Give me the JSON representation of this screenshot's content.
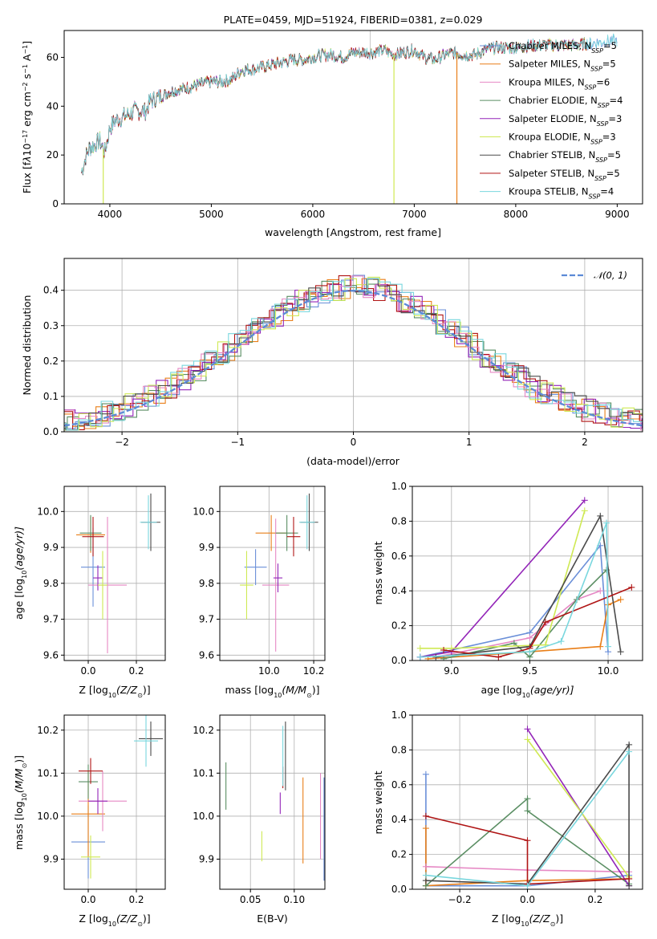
{
  "colors": [
    "#6a8fd8",
    "#e97f19",
    "#e688c4",
    "#5a8e63",
    "#9325b8",
    "#cfe954",
    "#4a4a4a",
    "#b01515",
    "#79d7de"
  ],
  "chart_data": [
    {
      "id": "spectrum",
      "type": "line",
      "title": "PLATE=0459, MJD=51924, FIBERID=0381, z=0.029",
      "xlabel": "wavelength [Angstrom, rest frame]",
      "ylabel_base": "Flux [f",
      "ylabel_lambda": "λ",
      "ylabel_pow": "10",
      "ylabel_exp": "−17",
      "ylabel_unit": " erg cm",
      "ylabel_e2": "−2",
      "ylabel_s": " s",
      "ylabel_e1": "−1",
      "ylabel_A": " A",
      "ylabel_e3": "−1",
      "ylabel_end": "]",
      "xlim": [
        3550,
        9250
      ],
      "ylim": [
        0,
        71
      ],
      "xticks": [
        4000,
        5000,
        6000,
        7000,
        8000,
        9000
      ],
      "yticks": [
        0,
        20,
        40,
        60
      ],
      "x": [
        3720,
        3760,
        3800,
        3850,
        3900,
        3950,
        4000,
        4050,
        4100,
        4150,
        4200,
        4250,
        4300,
        4350,
        4400,
        4500,
        4600,
        4700,
        4800,
        4900,
        5000,
        5100,
        5200,
        5300,
        5400,
        5500,
        5600,
        5700,
        5800,
        5900,
        6000,
        6100,
        6200,
        6300,
        6400,
        6500,
        6600,
        6700,
        6800,
        6900,
        7000,
        7100,
        7200,
        7300,
        7400,
        7500,
        7600,
        7700,
        7800,
        7900,
        8000,
        8200,
        8400,
        8600,
        8800,
        9000
      ],
      "y": [
        13,
        19,
        23,
        24,
        26,
        21,
        31,
        34,
        35,
        36,
        37,
        38,
        38,
        38,
        42,
        44,
        46,
        47,
        48,
        49,
        50,
        50,
        51,
        55,
        55,
        56,
        57,
        58,
        59,
        59,
        60,
        61,
        61,
        60,
        62,
        62,
        62,
        63,
        61,
        62,
        63,
        60,
        59,
        61,
        62,
        61,
        61,
        63,
        64,
        64,
        64,
        65,
        65,
        65,
        66,
        67
      ],
      "dips": [
        {
          "x": 3935,
          "to": 0,
          "series": 5
        },
        {
          "x": 6800,
          "to": 0,
          "series": 5
        },
        {
          "x": 7420,
          "to": 0,
          "series": 1
        }
      ],
      "series": [
        {
          "label": "Chabrier MILES, N",
          "sub": "SSP",
          "tail": "=5"
        },
        {
          "label": "Salpeter MILES, N",
          "sub": "SSP",
          "tail": "=5"
        },
        {
          "label": "Kroupa MILES, N",
          "sub": "SSP",
          "tail": "=6"
        },
        {
          "label": "Chabrier ELODIE, N",
          "sub": "SSP",
          "tail": "=4"
        },
        {
          "label": "Salpeter ELODIE, N",
          "sub": "SSP",
          "tail": "=3"
        },
        {
          "label": "Kroupa ELODIE, N",
          "sub": "SSP",
          "tail": "=3"
        },
        {
          "label": "Chabrier STELIB, N",
          "sub": "SSP",
          "tail": "=5"
        },
        {
          "label": "Salpeter STELIB, N",
          "sub": "SSP",
          "tail": "=5"
        },
        {
          "label": "Kroupa STELIB, N",
          "sub": "SSP",
          "tail": "=4"
        }
      ]
    },
    {
      "id": "residuals",
      "type": "step",
      "xlabel": "(data-model)/error",
      "ylabel": "Normed distribution",
      "xlim": [
        -2.5,
        2.5
      ],
      "ylim": [
        0,
        0.49
      ],
      "xticks": [
        -2,
        -1,
        0,
        1,
        2
      ],
      "xticklabels": [
        "−2",
        "−1",
        "0",
        "1",
        "2"
      ],
      "yticks": [
        0,
        0.1,
        0.2,
        0.3,
        0.4
      ],
      "gauss_label": "𝒩(0, 1)"
    },
    {
      "id": "age_Z",
      "type": "errorbar",
      "xlabel_pre": "Z [log",
      "xlabel_sub": "10",
      "xlabel_post": "(Z/Z",
      "xlabel_odot": "⊙",
      "xlabel_end": ")]",
      "ylabel_pre": "age  [log",
      "ylabel_sub": "10",
      "ylabel_post": "(age/yr)]",
      "xlim": [
        -0.1,
        0.32
      ],
      "ylim": [
        9.585,
        10.07
      ],
      "xticks": [
        0,
        0.2
      ],
      "yticks": [
        9.6,
        9.7,
        9.8,
        9.9,
        10.0
      ],
      "points": [
        {
          "x": 0.02,
          "y": 9.845,
          "dx": 0.05,
          "dy": 0.11
        },
        {
          "x": 0.01,
          "y": 9.935,
          "dx": 0.06,
          "dy": 0.05
        },
        {
          "x": 0.08,
          "y": 9.795,
          "dx": 0.08,
          "dy": 0.19
        },
        {
          "x": 0.01,
          "y": 9.94,
          "dx": 0.045,
          "dy": 0.05
        },
        {
          "x": 0.04,
          "y": 9.815,
          "dx": 0.02,
          "dy": 0.035
        },
        {
          "x": 0.06,
          "y": 9.795,
          "dx": 0.02,
          "dy": 0.095
        },
        {
          "x": 0.26,
          "y": 9.97,
          "dx": 0.04,
          "dy": 0.08
        },
        {
          "x": 0.02,
          "y": 9.93,
          "dx": 0.045,
          "dy": 0.055
        },
        {
          "x": 0.25,
          "y": 9.97,
          "dx": 0.035,
          "dy": 0.075
        }
      ]
    },
    {
      "id": "age_mass",
      "type": "errorbar",
      "xlabel_pre": "mass [log",
      "xlabel_sub": "10",
      "xlabel_post": "(M/M",
      "xlabel_odot": "⊙",
      "xlabel_end": ")]",
      "xlim": [
        9.78,
        10.25
      ],
      "ylim": [
        9.585,
        10.07
      ],
      "xticks": [
        10.0,
        10.2
      ],
      "yticks": [
        9.6,
        9.7,
        9.8,
        9.9,
        10.0
      ],
      "points": [
        {
          "x": 9.94,
          "y": 9.845,
          "dx": 0.05,
          "dy": 0.05
        },
        {
          "x": 10.01,
          "y": 9.94,
          "dx": 0.07,
          "dy": 0.05
        },
        {
          "x": 10.03,
          "y": 9.795,
          "dx": 0.06,
          "dy": 0.185
        },
        {
          "x": 10.08,
          "y": 9.94,
          "dx": 0.05,
          "dy": 0.05
        },
        {
          "x": 10.04,
          "y": 9.815,
          "dx": 0.02,
          "dy": 0.04
        },
        {
          "x": 9.9,
          "y": 9.795,
          "dx": 0.03,
          "dy": 0.095
        },
        {
          "x": 10.18,
          "y": 9.97,
          "dx": 0.04,
          "dy": 0.08
        },
        {
          "x": 10.11,
          "y": 9.93,
          "dx": 0.03,
          "dy": 0.055
        },
        {
          "x": 10.17,
          "y": 9.97,
          "dx": 0.035,
          "dy": 0.075
        }
      ]
    },
    {
      "id": "weight_age",
      "type": "line",
      "xlabel_pre": "age  [log",
      "xlabel_sub": "10",
      "xlabel_post": "(age/yr)]",
      "ylabel": "mass weight",
      "xlim": [
        8.75,
        10.22
      ],
      "ylim": [
        0,
        1.0
      ],
      "xticks": [
        9.0,
        9.5,
        10.0
      ],
      "yticks": [
        0,
        0.2,
        0.4,
        0.6,
        0.8,
        1.0
      ],
      "lines": [
        [
          [
            8.8,
            0.02
          ],
          [
            9.5,
            0.16
          ],
          [
            9.95,
            0.66
          ],
          [
            10.0,
            0.05
          ]
        ],
        [
          [
            8.85,
            0.01
          ],
          [
            9.5,
            0.05
          ],
          [
            9.95,
            0.08
          ],
          [
            10.0,
            0.32
          ],
          [
            10.08,
            0.35
          ]
        ],
        [
          [
            8.9,
            0.02
          ],
          [
            9.5,
            0.13
          ],
          [
            9.8,
            0.35
          ],
          [
            9.95,
            0.4
          ]
        ],
        [
          [
            8.95,
            0.01
          ],
          [
            9.4,
            0.1
          ],
          [
            9.5,
            0.02
          ],
          [
            9.8,
            0.35
          ],
          [
            9.99,
            0.52
          ]
        ],
        [
          [
            8.8,
            0.02
          ],
          [
            9.0,
            0.05
          ],
          [
            9.85,
            0.92
          ]
        ],
        [
          [
            8.8,
            0.07
          ],
          [
            9.0,
            0.07
          ],
          [
            9.6,
            0.09
          ],
          [
            9.85,
            0.86
          ]
        ],
        [
          [
            8.9,
            0.02
          ],
          [
            9.5,
            0.08
          ],
          [
            9.95,
            0.83
          ],
          [
            10.08,
            0.05
          ]
        ],
        [
          [
            8.95,
            0.06
          ],
          [
            9.3,
            0.02
          ],
          [
            9.5,
            0.07
          ],
          [
            9.6,
            0.22
          ],
          [
            10.15,
            0.42
          ]
        ],
        [
          [
            8.8,
            0.02
          ],
          [
            9.5,
            0.05
          ],
          [
            9.7,
            0.11
          ],
          [
            9.99,
            0.79
          ],
          [
            10.0,
            0.08
          ]
        ]
      ]
    },
    {
      "id": "mass_Z",
      "type": "errorbar",
      "xlabel_pre": "Z [log",
      "xlabel_sub": "10",
      "xlabel_post": "(Z/Z",
      "xlabel_odot": "⊙",
      "xlabel_end": ")]",
      "ylabel_pre": "mass [log",
      "ylabel_sub": "10",
      "ylabel_post": "(M/M",
      "ylabel_odot": "⊙",
      "ylabel_end": ")]",
      "xlim": [
        -0.1,
        0.32
      ],
      "ylim": [
        9.83,
        10.235
      ],
      "xticks": [
        0,
        0.2
      ],
      "yticks": [
        9.9,
        10.0,
        10.1,
        10.2
      ],
      "points": [
        {
          "x": 0.0,
          "y": 9.94,
          "dx": 0.07,
          "dy": 0.085
        },
        {
          "x": 0.0,
          "y": 10.005,
          "dx": 0.07,
          "dy": 0.1
        },
        {
          "x": 0.06,
          "y": 10.035,
          "dx": 0.1,
          "dy": 0.07
        },
        {
          "x": 0.0,
          "y": 10.08,
          "dx": 0.04,
          "dy": 0.04
        },
        {
          "x": 0.04,
          "y": 10.035,
          "dx": 0.04,
          "dy": 0.03
        },
        {
          "x": 0.01,
          "y": 9.905,
          "dx": 0.04,
          "dy": 0.05
        },
        {
          "x": 0.26,
          "y": 10.18,
          "dx": 0.05,
          "dy": 0.04
        },
        {
          "x": 0.01,
          "y": 10.105,
          "dx": 0.05,
          "dy": 0.03
        },
        {
          "x": 0.24,
          "y": 10.175,
          "dx": 0.05,
          "dy": 0.06
        }
      ]
    },
    {
      "id": "mass_ebv",
      "type": "errorbar",
      "xlabel": "E(B-V)",
      "xlim": [
        0.015,
        0.135
      ],
      "ylim": [
        9.83,
        10.235
      ],
      "xticks": [
        0.05,
        0.1
      ],
      "yticks": [
        9.9,
        10.0,
        10.1,
        10.2
      ],
      "points": [
        {
          "x": 0.134,
          "y": 9.97,
          "dx": 0,
          "dy": 0.12
        },
        {
          "x": 0.11,
          "y": 9.99,
          "dx": 0,
          "dy": 0.1
        },
        {
          "x": 0.13,
          "y": 10.0,
          "dx": 0,
          "dy": 0.1
        },
        {
          "x": 0.022,
          "y": 10.07,
          "dx": 0,
          "dy": 0.055
        },
        {
          "x": 0.084,
          "y": 10.03,
          "dx": 0,
          "dy": 0.025
        },
        {
          "x": 0.063,
          "y": 9.93,
          "dx": 0,
          "dy": 0.035
        },
        {
          "x": 0.09,
          "y": 10.14,
          "dx": 0,
          "dy": 0.08
        },
        {
          "x": 0.087,
          "y": 10.09,
          "dx": 0,
          "dy": 0.025
        },
        {
          "x": 0.087,
          "y": 10.14,
          "dx": 0,
          "dy": 0.07
        }
      ]
    },
    {
      "id": "weight_Z",
      "type": "line",
      "xlabel_pre": "Z [log",
      "xlabel_sub": "10",
      "xlabel_post": "(Z/Z",
      "xlabel_odot": "⊙",
      "xlabel_end": ")]",
      "ylabel": "mass weight",
      "xlim": [
        -0.34,
        0.34
      ],
      "ylim": [
        0,
        1.0
      ],
      "xticks": [
        -0.2,
        0,
        0.2
      ],
      "xticklabels": [
        "−0.2",
        "0.0",
        "0.2"
      ],
      "yticks": [
        0,
        0.2,
        0.4,
        0.6,
        0.8,
        1.0
      ],
      "lines": [
        [
          [
            -0.3,
            0.66
          ],
          [
            -0.3,
            0.02
          ],
          [
            0.0,
            0.02
          ],
          [
            0.3,
            0.08
          ]
        ],
        [
          [
            -0.3,
            0.35
          ],
          [
            -0.3,
            0.02
          ],
          [
            0.0,
            0.05
          ],
          [
            0.3,
            0.06
          ]
        ],
        [
          [
            -0.3,
            0.13
          ],
          [
            0.0,
            0.11
          ],
          [
            0.3,
            0.1
          ]
        ],
        [
          [
            -0.3,
            0.02
          ],
          [
            0.0,
            0.52
          ],
          [
            0.0,
            0.45
          ],
          [
            0.3,
            0.03
          ]
        ],
        [
          [
            0.0,
            0.92
          ],
          [
            0.3,
            0.02
          ]
        ],
        [
          [
            0.0,
            0.86
          ],
          [
            0.3,
            0.07
          ]
        ],
        [
          [
            -0.3,
            0.05
          ],
          [
            0.0,
            0.03
          ],
          [
            0.3,
            0.83
          ],
          [
            0.3,
            0.02
          ]
        ],
        [
          [
            -0.3,
            0.42
          ],
          [
            0.0,
            0.28
          ],
          [
            0.0,
            0.03
          ],
          [
            0.3,
            0.06
          ]
        ],
        [
          [
            -0.3,
            0.08
          ],
          [
            0.0,
            0.02
          ],
          [
            0.3,
            0.79
          ]
        ]
      ]
    }
  ]
}
